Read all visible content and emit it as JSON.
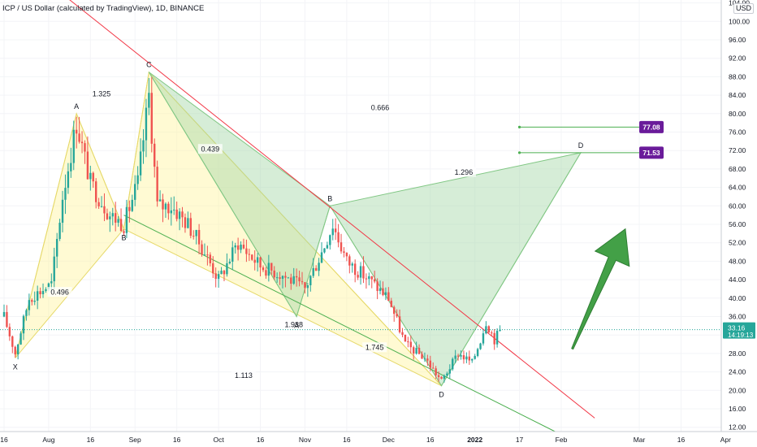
{
  "header": {
    "title": "ICP / US Dollar (calculated by TradingView), 1D, BINANCE",
    "currency": "USD"
  },
  "colors": {
    "up": "#26a69a",
    "down": "#ef5350",
    "resistance_line": "#f23645",
    "support_line": "#4caf50",
    "pattern_yellow": "#fff59d",
    "pattern_green": "#a5d6a7",
    "target_badge": "#6a1b9a",
    "arrow": "#43a047"
  },
  "chart_data": {
    "type": "candlestick",
    "y_axis": {
      "min": 10,
      "max": 104,
      "ticks": [
        "12.00",
        "16.00",
        "20.00",
        "24.00",
        "28.00",
        "32.00",
        "36.00",
        "40.00",
        "44.00",
        "48.00",
        "52.00",
        "56.00",
        "60.00",
        "64.00",
        "68.00",
        "72.00",
        "76.00",
        "80.00",
        "84.00",
        "88.00",
        "92.00",
        "96.00",
        "100.00",
        "104.00"
      ]
    },
    "x_axis": {
      "ticks": [
        {
          "label": "16",
          "date": "2021-07-16"
        },
        {
          "label": "Aug",
          "date": "2021-08-01"
        },
        {
          "label": "16",
          "date": "2021-08-16"
        },
        {
          "label": "Sep",
          "date": "2021-09-01"
        },
        {
          "label": "16",
          "date": "2021-09-16"
        },
        {
          "label": "Oct",
          "date": "2021-10-01"
        },
        {
          "label": "16",
          "date": "2021-10-16"
        },
        {
          "label": "Nov",
          "date": "2021-11-01"
        },
        {
          "label": "16",
          "date": "2021-11-16"
        },
        {
          "label": "Dec",
          "date": "2021-12-01"
        },
        {
          "label": "16",
          "date": "2021-12-16"
        },
        {
          "label": "2022",
          "date": "2022-01-01"
        },
        {
          "label": "17",
          "date": "2022-01-17"
        },
        {
          "label": "Feb",
          "date": "2022-02-01"
        },
        {
          "label": "Mar",
          "date": "2022-03-01"
        },
        {
          "label": "16",
          "date": "2022-03-16"
        },
        {
          "label": "Apr",
          "date": "2022-04-01"
        }
      ]
    },
    "price_path": [
      {
        "date": "2021-07-16",
        "price": 36
      },
      {
        "date": "2021-07-20",
        "price": 28
      },
      {
        "date": "2021-07-25",
        "price": 40
      },
      {
        "date": "2021-08-02",
        "price": 43
      },
      {
        "date": "2021-08-06",
        "price": 62
      },
      {
        "date": "2021-08-11",
        "price": 78
      },
      {
        "date": "2021-08-16",
        "price": 65
      },
      {
        "date": "2021-08-23",
        "price": 58
      },
      {
        "date": "2021-08-28",
        "price": 56
      },
      {
        "date": "2021-09-02",
        "price": 65
      },
      {
        "date": "2021-09-06",
        "price": 84
      },
      {
        "date": "2021-09-09",
        "price": 60
      },
      {
        "date": "2021-09-14",
        "price": 60
      },
      {
        "date": "2021-09-20",
        "price": 56
      },
      {
        "date": "2021-09-26",
        "price": 50
      },
      {
        "date": "2021-10-01",
        "price": 44
      },
      {
        "date": "2021-10-08",
        "price": 52
      },
      {
        "date": "2021-10-16",
        "price": 47
      },
      {
        "date": "2021-10-24",
        "price": 45
      },
      {
        "date": "2021-11-01",
        "price": 42
      },
      {
        "date": "2021-11-07",
        "price": 50
      },
      {
        "date": "2021-11-11",
        "price": 56
      },
      {
        "date": "2021-11-16",
        "price": 48
      },
      {
        "date": "2021-11-24",
        "price": 44
      },
      {
        "date": "2021-12-01",
        "price": 40
      },
      {
        "date": "2021-12-07",
        "price": 30
      },
      {
        "date": "2021-12-14",
        "price": 27
      },
      {
        "date": "2021-12-20",
        "price": 22
      },
      {
        "date": "2021-12-26",
        "price": 28
      },
      {
        "date": "2021-12-31",
        "price": 26
      },
      {
        "date": "2022-01-03",
        "price": 31
      },
      {
        "date": "2022-01-05",
        "price": 35
      },
      {
        "date": "2022-01-08",
        "price": 31
      },
      {
        "date": "2022-01-10",
        "price": 33
      }
    ],
    "last_price": {
      "value": 33.16,
      "label": "33.16",
      "countdown": "14:19:13"
    },
    "patterns": [
      {
        "color": "yellow",
        "points": [
          {
            "name": "X",
            "date": "2021-07-20",
            "price": 27,
            "label": "X"
          },
          {
            "name": "A",
            "date": "2021-08-11",
            "price": 80,
            "label": "A"
          },
          {
            "name": "B",
            "date": "2021-08-28",
            "price": 55,
            "label": "B"
          },
          {
            "name": "C",
            "date": "2021-09-06",
            "price": 89,
            "label": "C"
          },
          {
            "name": "D",
            "date": "2021-12-20",
            "price": 21,
            "label": "D"
          }
        ],
        "ratios": [
          {
            "text": "0.496",
            "date": "2021-08-05",
            "price": 41
          },
          {
            "text": "1.325",
            "date": "2021-08-20",
            "price": 84
          },
          {
            "text": "1.938",
            "date": "2021-10-28",
            "price": 34
          },
          {
            "text": "1.113",
            "date": "2021-10-10",
            "price": 23
          }
        ]
      },
      {
        "color": "green",
        "points": [
          {
            "name": "X",
            "date": "2021-09-06",
            "price": 89,
            "label": ""
          },
          {
            "name": "A",
            "date": "2021-10-29",
            "price": 36,
            "label": "A"
          },
          {
            "name": "B",
            "date": "2021-11-10",
            "price": 60,
            "label": "B"
          },
          {
            "name": "C",
            "date": "2021-12-20",
            "price": 21,
            "label": ""
          },
          {
            "name": "D",
            "date": "2022-02-08",
            "price": 71.53,
            "label": "D"
          }
        ],
        "ratios": [
          {
            "text": "0.439",
            "date": "2021-09-28",
            "price": 72
          },
          {
            "text": "0.666",
            "date": "2021-11-28",
            "price": 81
          },
          {
            "text": "1.745",
            "date": "2021-11-26",
            "price": 29
          },
          {
            "text": "1.296",
            "date": "2021-12-28",
            "price": 67
          }
        ]
      }
    ],
    "trend_lines": [
      {
        "name": "resistance",
        "from": {
          "date": "2021-07-16",
          "price": 116
        },
        "to": {
          "date": "2022-02-13",
          "price": 14
        }
      },
      {
        "name": "support",
        "from": {
          "date": "2021-08-28",
          "price": 58
        },
        "to": {
          "date": "2022-01-30",
          "price": 11
        }
      }
    ],
    "targets": [
      {
        "label": "77.08",
        "value": 77.08,
        "from_date": "2022-01-17",
        "to_date": "2022-03-01"
      },
      {
        "label": "71.53",
        "value": 71.53,
        "from_date": "2022-01-17",
        "to_date": "2022-03-01"
      }
    ],
    "arrow": {
      "direction": "up",
      "from": {
        "date": "2022-02-05",
        "price": 29
      },
      "to": {
        "date": "2022-02-24",
        "price": 55
      }
    }
  }
}
